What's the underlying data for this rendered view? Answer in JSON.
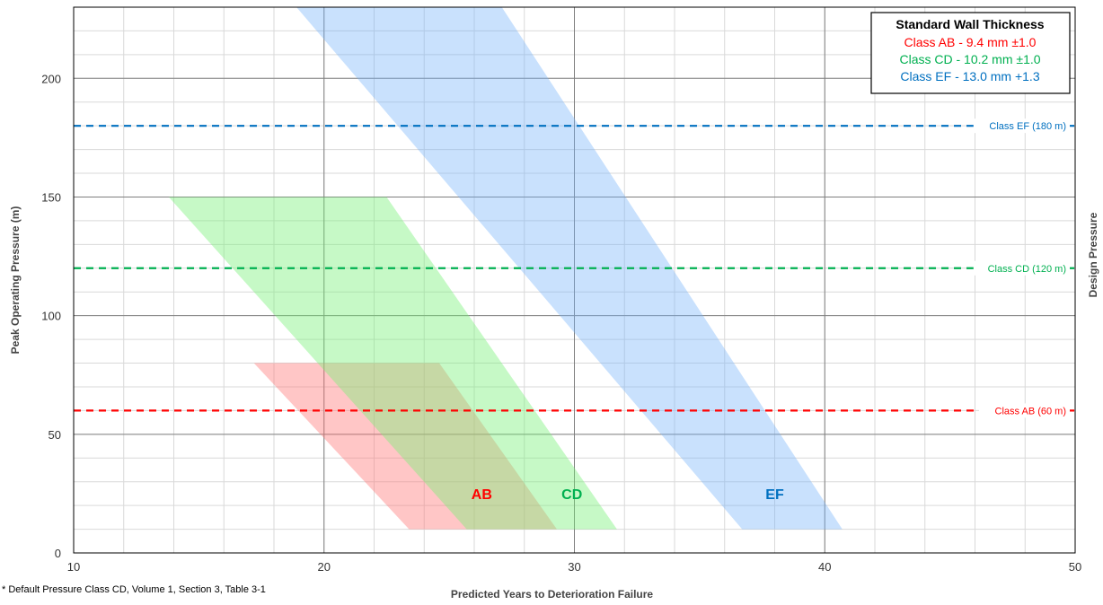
{
  "chart_data": {
    "type": "area",
    "xlabel": "Predicted Years to Deterioration Failure",
    "ylabel": "Peak Operating Pressure (m)",
    "y2label": "Design Pressure",
    "xlim": [
      10,
      50
    ],
    "ylim": [
      0,
      230
    ],
    "x_major_ticks": [
      10,
      20,
      30,
      40,
      50
    ],
    "y_major_ticks": [
      0,
      50,
      100,
      150,
      200
    ],
    "x_minor_step": 2,
    "y_minor_step": 10,
    "grid": true,
    "legend_position": "top-right",
    "legend": {
      "title": "Standard Wall Thickness",
      "entries": [
        {
          "label": "Class AB - 9.4 mm ±1.0",
          "color": "#ff0000"
        },
        {
          "label": "Class CD - 10.2 mm ±1.0",
          "color": "#00b050"
        },
        {
          "label": "Class EF - 13.0 mm +1.3",
          "color": "#0070c0"
        }
      ]
    },
    "bands": [
      {
        "name": "AB",
        "color": "#ff0000",
        "fill": "rgba(255,120,120,0.42)",
        "points": [
          [
            17.2,
            80
          ],
          [
            24.6,
            80
          ],
          [
            29.3,
            10
          ],
          [
            23.4,
            10
          ]
        ],
        "label_pos": [
          26.3,
          25
        ]
      },
      {
        "name": "CD",
        "color": "#00b050",
        "fill": "rgba(120,240,120,0.42)",
        "points": [
          [
            13.8,
            150
          ],
          [
            22.5,
            150
          ],
          [
            31.7,
            10
          ],
          [
            25.7,
            10
          ]
        ],
        "label_pos": [
          29.9,
          25
        ]
      },
      {
        "name": "EF",
        "color": "#0070c0",
        "fill": "rgba(120,180,250,0.40)",
        "points": [
          [
            18.9,
            230
          ],
          [
            27.1,
            230
          ],
          [
            40.7,
            10
          ],
          [
            36.7,
            10
          ]
        ],
        "label_pos": [
          38.0,
          25
        ]
      }
    ],
    "reference_lines": [
      {
        "label": "Class EF (180 m)",
        "y": 180,
        "color": "#0070c0"
      },
      {
        "label": "Class CD (120 m)",
        "y": 120,
        "color": "#00b050"
      },
      {
        "label": "Class AB (60 m)",
        "y": 60,
        "color": "#ff0000"
      }
    ]
  },
  "footnote": "* Default Pressure Class CD, Volume 1, Section 3, Table 3-1"
}
